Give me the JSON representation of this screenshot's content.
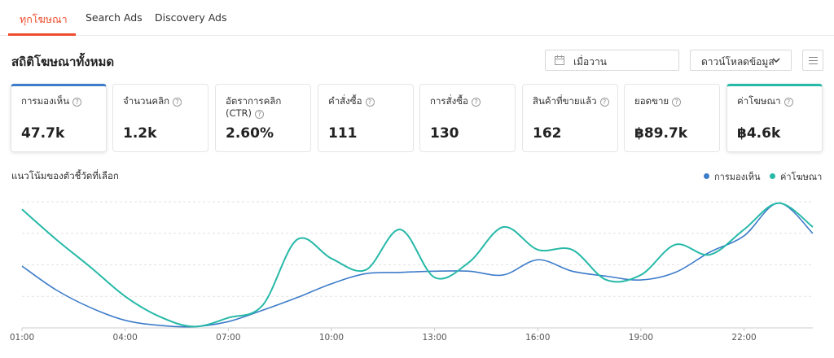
{
  "tabs": [
    {
      "label": "ทุกโฆษณา",
      "active": true
    },
    {
      "label": "Search Ads",
      "active": false
    },
    {
      "label": "Discovery Ads",
      "active": false
    }
  ],
  "section_title": "สถิติโฆษณาทั้งหมด",
  "date_picker": {
    "value": "เมื่อวาน",
    "icon": "calendar-icon"
  },
  "download_button": {
    "label": "ดาวน์โหลดข้อมูล",
    "icon": "chevron-down-icon"
  },
  "menu_button": {
    "icon": "list-icon"
  },
  "metrics": [
    {
      "label": "การมองเห็น",
      "value": "47.7k",
      "selected": "blue"
    },
    {
      "label": "จำนวนคลิก",
      "value": "1.2k"
    },
    {
      "label": "อัตราการคลิก (CTR)",
      "value": "2.60%"
    },
    {
      "label": "คำสั่งซื้อ",
      "value": "111"
    },
    {
      "label": "การสั่งซื้อ",
      "value": "130"
    },
    {
      "label": "สินค้าที่ขายแล้ว",
      "value": "162"
    },
    {
      "label": "ยอดขาย",
      "value": "฿89.7k"
    },
    {
      "label": "ค่าโฆษณา",
      "value": "฿4.6k",
      "selected": "teal"
    }
  ],
  "chart_title": "แนวโน้มของตัวชี้วัดที่เลือก",
  "colors": {
    "accent": "#ee4d2d",
    "series_blue": "#3d7cc9",
    "series_teal": "#26b9a8"
  },
  "chart_data": {
    "type": "line",
    "x": [
      "01:00",
      "02:00",
      "03:00",
      "04:00",
      "05:00",
      "06:00",
      "07:00",
      "08:00",
      "09:00",
      "10:00",
      "11:00",
      "12:00",
      "13:00",
      "14:00",
      "15:00",
      "16:00",
      "17:00",
      "18:00",
      "19:00",
      "20:00",
      "21:00",
      "22:00",
      "23:00",
      "23:55"
    ],
    "xticks": [
      "01:00",
      "04:00",
      "07:00",
      "10:00",
      "13:00",
      "16:00",
      "19:00",
      "22:00"
    ],
    "ylim": [
      0,
      100
    ],
    "grid": true,
    "legend_position": "top-right",
    "series": [
      {
        "name": "การมองเห็น",
        "color": "#3d7cc9",
        "values": [
          49,
          30,
          16,
          6,
          2,
          1,
          5,
          14,
          24,
          35,
          43,
          44,
          45,
          45,
          42,
          54,
          45,
          41,
          38,
          44,
          60,
          73,
          99,
          75
        ]
      },
      {
        "name": "ค่าโฆษณา",
        "color": "#26b9a8",
        "values": [
          94,
          70,
          48,
          25,
          9,
          1,
          8,
          18,
          70,
          55,
          46,
          78,
          40,
          52,
          80,
          62,
          62,
          38,
          42,
          66,
          58,
          78,
          99,
          80
        ]
      }
    ]
  }
}
